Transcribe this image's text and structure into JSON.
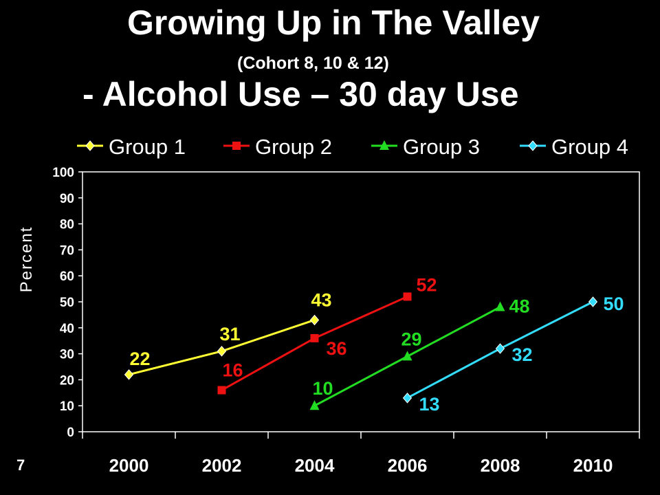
{
  "slide": {
    "title": "Growing Up in The Valley",
    "subtitle": "(Cohort 8, 10 & 12)",
    "title_line3": "- Alcohol Use – 30 day Use",
    "number": "7"
  },
  "chart_data": {
    "type": "line",
    "title": "",
    "xlabel": "",
    "ylabel": "Percent",
    "categories": [
      "2000",
      "2002",
      "2004",
      "2006",
      "2008",
      "2010"
    ],
    "ylim": [
      0,
      100
    ],
    "yticks": [
      "0",
      "10",
      "20",
      "30",
      "40",
      "50",
      "60",
      "70",
      "80",
      "90",
      "100"
    ],
    "grid": false,
    "legend": "top",
    "series": [
      {
        "name": "Group 1",
        "color": "#ffff33",
        "marker": "diamond",
        "points": [
          {
            "x": 2000,
            "y": 22
          },
          {
            "x": 2002,
            "y": 31
          },
          {
            "x": 2004,
            "y": 43
          }
        ]
      },
      {
        "name": "Group 2",
        "color": "#ee1111",
        "marker": "square",
        "points": [
          {
            "x": 2002,
            "y": 16
          },
          {
            "x": 2004,
            "y": 36
          },
          {
            "x": 2006,
            "y": 52
          }
        ]
      },
      {
        "name": "Group 3",
        "color": "#22dd22",
        "marker": "triangle",
        "points": [
          {
            "x": 2004,
            "y": 10
          },
          {
            "x": 2006,
            "y": 29
          },
          {
            "x": 2008,
            "y": 48
          }
        ]
      },
      {
        "name": "Group 4",
        "color": "#33ddff",
        "marker": "diamond",
        "points": [
          {
            "x": 2006,
            "y": 13
          },
          {
            "x": 2008,
            "y": 32
          },
          {
            "x": 2010,
            "y": 50
          }
        ]
      }
    ]
  }
}
